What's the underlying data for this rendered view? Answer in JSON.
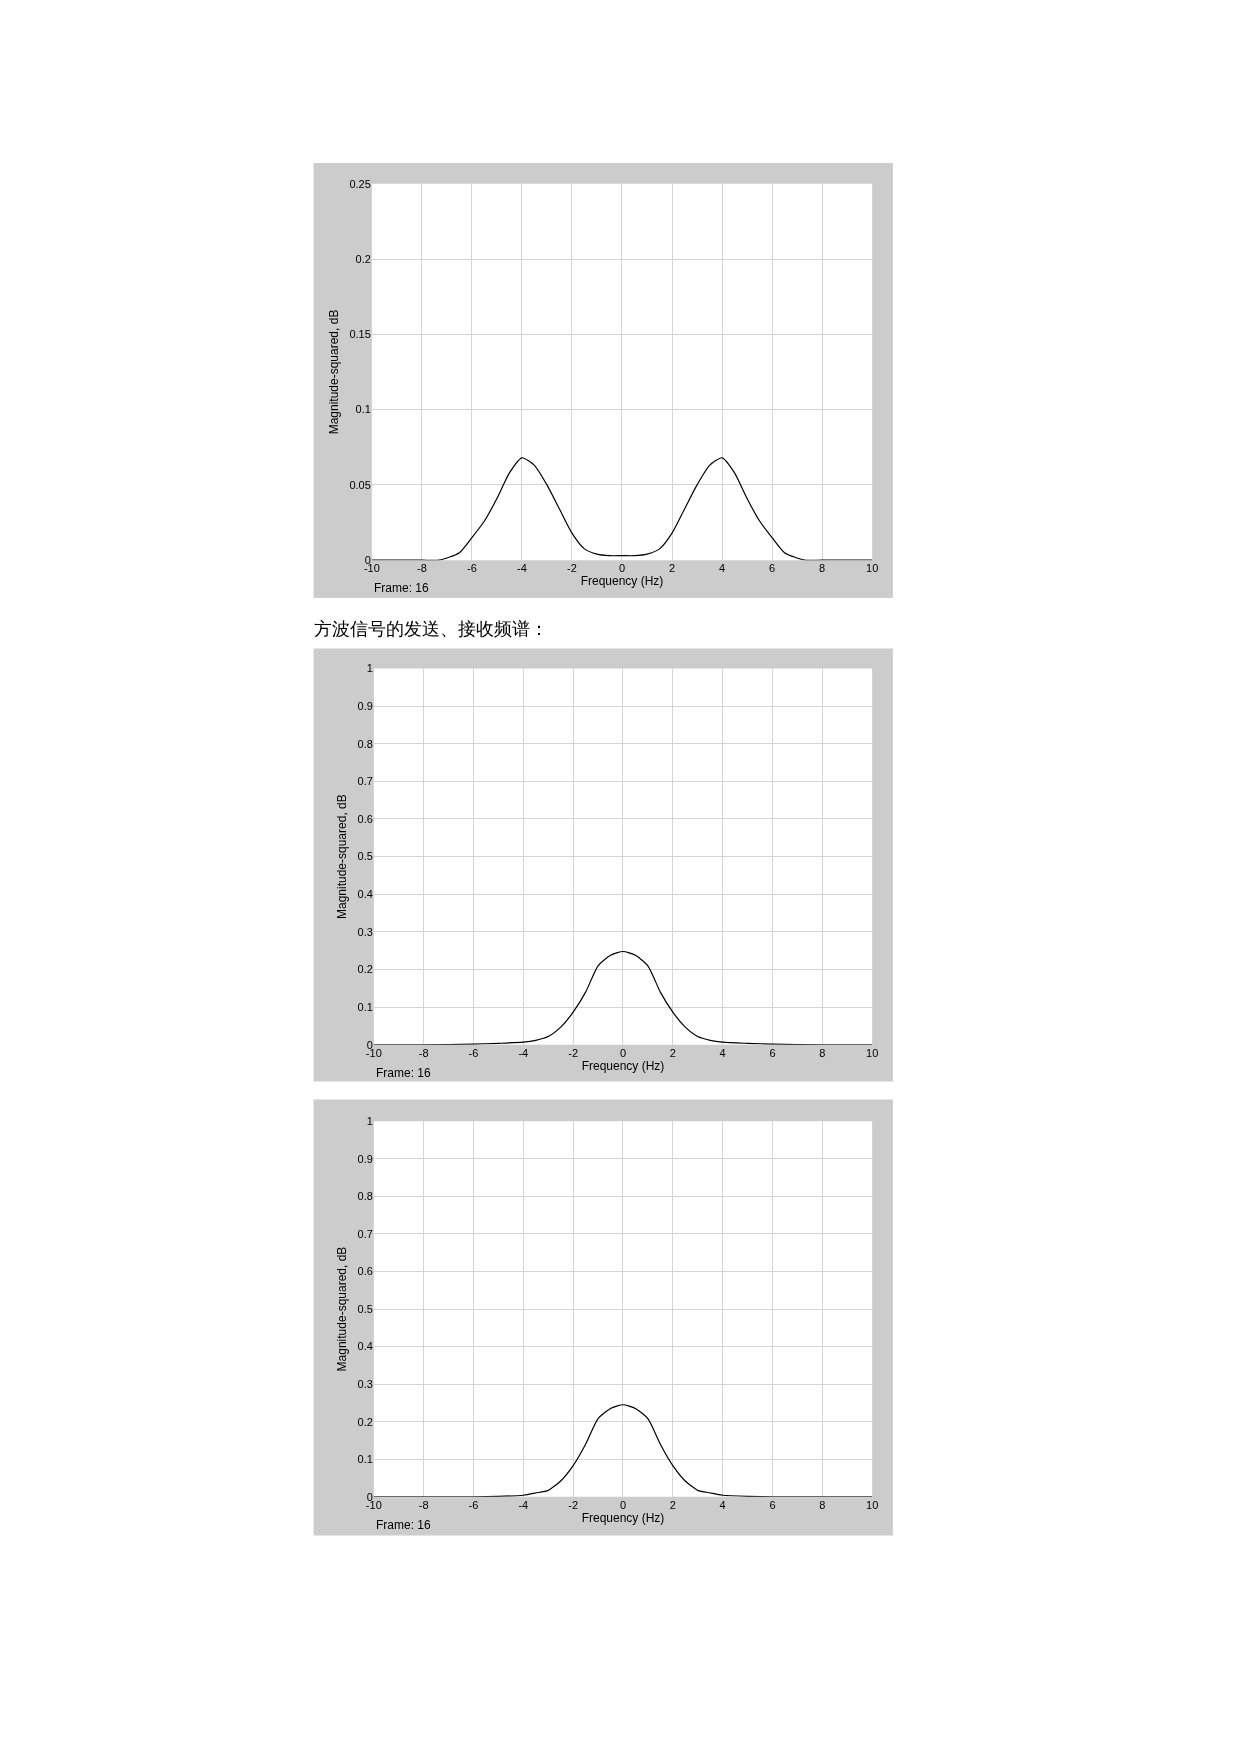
{
  "chart_data": [
    {
      "type": "line",
      "xlabel": "Frequency (Hz)",
      "ylabel": "Magnitude-squared, dB",
      "annotations": [
        "Frame: 16"
      ],
      "x": [
        -10,
        -8,
        -7.3,
        -6.5,
        -6,
        -5.5,
        -5,
        -4.5,
        -4,
        -3.5,
        -3,
        -2.5,
        -2,
        -1.5,
        -1,
        -0.5,
        0,
        0.5,
        1,
        1.5,
        2,
        2.5,
        3,
        3.5,
        4,
        4.5,
        5,
        5.5,
        6,
        6.5,
        7.3,
        8,
        10
      ],
      "series": [
        {
          "color": "#000000",
          "values": [
            0,
            0,
            0,
            0.005,
            0.015,
            0.026,
            0.041,
            0.058,
            0.068,
            0.063,
            0.05,
            0.034,
            0.018,
            0.0075,
            0.004,
            0.003,
            0.003,
            0.003,
            0.004,
            0.0075,
            0.018,
            0.034,
            0.05,
            0.063,
            0.068,
            0.058,
            0.041,
            0.026,
            0.015,
            0.005,
            0,
            0,
            0
          ]
        }
      ],
      "xlim": [
        -10,
        10
      ],
      "xticks": [
        -10,
        -8,
        -6,
        -4,
        -2,
        0,
        2,
        4,
        6,
        8,
        10
      ],
      "ylim": [
        0,
        0.25
      ],
      "yticks": [
        0,
        0.05,
        0.1,
        0.15,
        0.2,
        0.25
      ],
      "grid": true
    },
    {
      "type": "line",
      "title": "方波信号的发送、接收频谱：",
      "xlabel": "Frequency (Hz)",
      "ylabel": "Magnitude-squared, dB",
      "annotations": [
        "Frame: 16"
      ],
      "x": [
        -10,
        -8,
        -6,
        -5,
        -4,
        -3.5,
        -3,
        -2.5,
        -2,
        -1.5,
        -1,
        -0.5,
        0,
        0.5,
        1,
        1.5,
        2,
        2.5,
        3,
        3.5,
        4,
        5,
        6,
        8,
        10
      ],
      "series": [
        {
          "color": "#000000",
          "values": [
            0,
            0,
            0.002,
            0.004,
            0.007,
            0.012,
            0.022,
            0.047,
            0.087,
            0.14,
            0.21,
            0.238,
            0.248,
            0.238,
            0.21,
            0.14,
            0.087,
            0.047,
            0.022,
            0.012,
            0.007,
            0.004,
            0.002,
            0,
            0
          ]
        }
      ],
      "xlim": [
        -10,
        10
      ],
      "xticks": [
        -10,
        -8,
        -6,
        -4,
        -2,
        0,
        2,
        4,
        6,
        8,
        10
      ],
      "ylim": [
        0,
        1
      ],
      "yticks": [
        0,
        0.1,
        0.2,
        0.3,
        0.4,
        0.5,
        0.6,
        0.7,
        0.8,
        0.9,
        1
      ],
      "grid": true
    },
    {
      "type": "line",
      "xlabel": "Frequency (Hz)",
      "ylabel": "Magnitude-squared, dB",
      "annotations": [
        "Frame: 16"
      ],
      "x": [
        -10,
        -8,
        -6,
        -5,
        -4,
        -3.5,
        -3,
        -2.5,
        -2,
        -1.5,
        -1,
        -0.5,
        0,
        0.5,
        1,
        1.5,
        2,
        2.5,
        3,
        3.5,
        4,
        5,
        6,
        8,
        10
      ],
      "series": [
        {
          "color": "#000000",
          "values": [
            0,
            0,
            0,
            0.001,
            0.004,
            0.01,
            0.017,
            0.042,
            0.083,
            0.14,
            0.208,
            0.235,
            0.245,
            0.235,
            0.208,
            0.14,
            0.083,
            0.042,
            0.017,
            0.01,
            0.004,
            0.001,
            0,
            0,
            0
          ]
        }
      ],
      "xlim": [
        -10,
        10
      ],
      "xticks": [
        -10,
        -8,
        -6,
        -4,
        -2,
        0,
        2,
        4,
        6,
        8,
        10
      ],
      "ylim": [
        0,
        1
      ],
      "yticks": [
        0,
        0.1,
        0.2,
        0.3,
        0.4,
        0.5,
        0.6,
        0.7,
        0.8,
        0.9,
        1
      ],
      "grid": true
    }
  ]
}
